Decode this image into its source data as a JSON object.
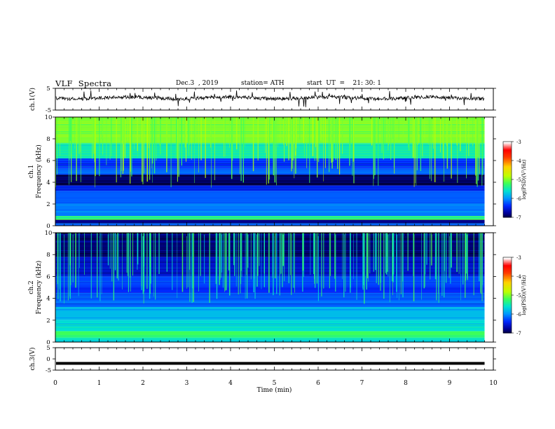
{
  "header": {
    "title": "VLF  Spectra",
    "date": "Dec.3  , 2019",
    "station": "station= ATH",
    "start_time": "start  UT  =    21: 30: 1"
  },
  "chart_data": [
    {
      "type": "line",
      "panel": "ch1-waveform",
      "ylabel": "ch.1(V)",
      "ylim": [
        -5,
        5
      ],
      "yticks": [
        "5",
        "-5"
      ],
      "baseline": 0,
      "color": "#000000"
    },
    {
      "type": "heatmap",
      "panel": "ch1-spectrogram",
      "ylabel": "ch.1\nFrequency  (kHz)",
      "ylim": [
        0,
        10
      ],
      "yticks": [
        "0",
        "2",
        "4",
        "6",
        "8",
        "10"
      ],
      "bands": [
        {
          "from": 0.0,
          "to": 0.2,
          "level": -6.2
        },
        {
          "from": 0.2,
          "to": 0.55,
          "level": -6.8
        },
        {
          "from": 0.55,
          "to": 0.9,
          "level": -5.3
        },
        {
          "from": 0.9,
          "to": 2.0,
          "level": -6.1
        },
        {
          "from": 2.0,
          "to": 3.2,
          "level": -6.2
        },
        {
          "from": 3.2,
          "to": 3.7,
          "level": -6.5
        },
        {
          "from": 3.7,
          "to": 4.7,
          "level": -6.95
        },
        {
          "from": 4.7,
          "to": 5.3,
          "level": -6.2
        },
        {
          "from": 5.3,
          "to": 6.2,
          "level": -6.4
        },
        {
          "from": 6.2,
          "to": 7.6,
          "level": -5.5
        },
        {
          "from": 7.6,
          "to": 10.0,
          "level": -5.0
        }
      ],
      "colorbar": {
        "label": "log(PSD)(V²/Hz)",
        "ticks": [
          "-3",
          "-4",
          "-5",
          "-6",
          "-7"
        ],
        "range": [
          -7,
          -3
        ],
        "colors": [
          "#000000",
          "#0000b0",
          "#0030ff",
          "#00a0ff",
          "#00e0d0",
          "#30ff60",
          "#c0ff00",
          "#ffd000",
          "#ff4000",
          "#ff0000",
          "#ffe0e0",
          "#ffffff"
        ]
      }
    },
    {
      "type": "heatmap",
      "panel": "ch2-spectrogram",
      "ylabel": "ch.2\nFrequency  (kHz)",
      "ylim": [
        0,
        10
      ],
      "yticks": [
        "0",
        "2",
        "4",
        "6",
        "8",
        "10"
      ],
      "bands": [
        {
          "from": 0.0,
          "to": 0.4,
          "level": -5.6
        },
        {
          "from": 0.4,
          "to": 1.0,
          "level": -5.2
        },
        {
          "from": 1.0,
          "to": 2.0,
          "level": -5.6
        },
        {
          "from": 2.0,
          "to": 3.2,
          "level": -5.8
        },
        {
          "from": 3.2,
          "to": 4.5,
          "level": -6.2
        },
        {
          "from": 4.5,
          "to": 5.0,
          "level": -6.4
        },
        {
          "from": 5.0,
          "to": 6.0,
          "level": -6.3
        },
        {
          "from": 6.0,
          "to": 7.8,
          "level": -6.6
        },
        {
          "from": 7.8,
          "to": 10.0,
          "level": -6.9
        }
      ],
      "colorbar": {
        "label": "log(PSD)(V²/Hz)",
        "ticks": [
          "-3",
          "-4",
          "-5",
          "-6",
          "-7"
        ],
        "range": [
          -7,
          -3
        ]
      }
    },
    {
      "type": "line",
      "panel": "ch3-waveform",
      "ylabel": "ch.3(V)",
      "ylim": [
        -5,
        5
      ],
      "yticks": [
        "5",
        "0",
        "-5"
      ],
      "constant_value": -2.0,
      "color": "#000000"
    }
  ],
  "xaxis": {
    "label": "Time  (min)",
    "range": [
      0,
      10
    ],
    "ticks": [
      "0",
      "1",
      "2",
      "3",
      "4",
      "5",
      "6",
      "7",
      "8",
      "9",
      "10"
    ],
    "data_end": 9.8
  }
}
